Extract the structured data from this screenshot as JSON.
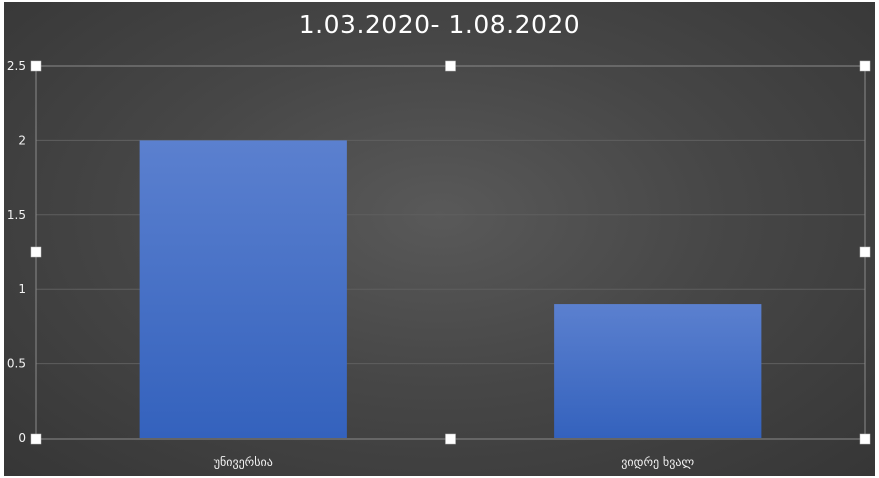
{
  "chart_data": {
    "type": "bar",
    "title": "1.03.2020- 1.08.2020",
    "categories": [
      "უნივერსია",
      "ვიდრე ხვალ"
    ],
    "values": [
      2,
      0.9
    ],
    "ylim": [
      0,
      2.5
    ],
    "yticks": [
      0,
      0.5,
      1,
      1.5,
      2,
      2.5
    ],
    "ytick_labels": [
      "0",
      "0.5",
      "1",
      "1.5",
      "2",
      "2.5"
    ],
    "xlabel": "",
    "ylabel": "",
    "grid": true,
    "legend": "none",
    "bar_color": "#4472c4",
    "background_color": "#404040",
    "gridline_color": "#5f5f5f",
    "text_color": "#f2f2f2"
  }
}
